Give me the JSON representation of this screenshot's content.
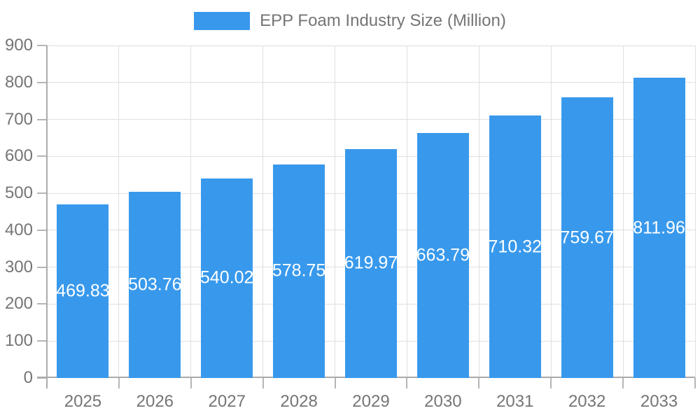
{
  "legend": {
    "label": "EPP Foam Industry Size (Million)"
  },
  "chart_data": {
    "type": "bar",
    "title": "EPP Foam Industry Size (Million)",
    "categories": [
      "2025",
      "2026",
      "2027",
      "2028",
      "2029",
      "2030",
      "2031",
      "2032",
      "2033"
    ],
    "series": [
      {
        "name": "EPP Foam Industry Size (Million)",
        "values": [
          469.83,
          503.76,
          540.02,
          578.75,
          619.97,
          663.79,
          710.32,
          759.67,
          811.96
        ]
      }
    ],
    "xlabel": "",
    "ylabel": "",
    "ylim": [
      0,
      900
    ],
    "yticks": [
      0,
      100,
      200,
      300,
      400,
      500,
      600,
      700,
      800,
      900
    ],
    "grid": true,
    "legend_position": "top-center",
    "bar_color": "#3899EC",
    "value_label_color": "#ffffff",
    "axis_text_color": "#757575",
    "gridline_color": "#e0e0e0",
    "axis_line_color": "#ababab"
  }
}
